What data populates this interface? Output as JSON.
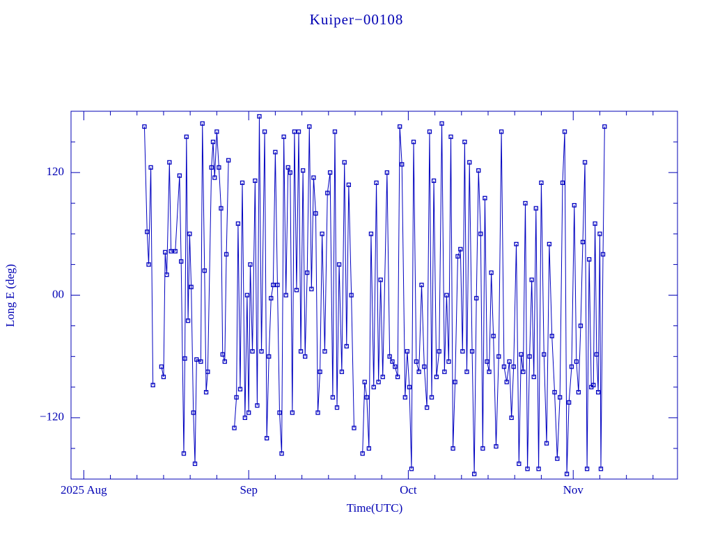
{
  "chart_data": {
    "type": "line",
    "title": "Kuiper−00108",
    "x_label": "Time(UTC)",
    "y_label": "Long E (deg)",
    "color": "#0000c0",
    "markers": true,
    "xlim": [
      -2.4,
      111.6
    ],
    "xticks": [
      {
        "value": 0,
        "label": "2025 Aug"
      },
      {
        "value": 31,
        "label": "Sep"
      },
      {
        "value": 61,
        "label": "Oct"
      },
      {
        "value": 92,
        "label": "Nov"
      }
    ],
    "xminorticks": [
      5,
      10,
      15,
      20,
      25,
      36,
      41,
      46,
      51,
      56,
      66,
      71,
      76,
      81,
      86,
      97,
      102,
      107
    ],
    "ylim": [
      -180,
      180
    ],
    "yticks": [
      {
        "value": -120,
        "label": "−120"
      },
      {
        "value": 0,
        "label": "00"
      },
      120
    ],
    "yminorticks": [
      -150,
      -90,
      -60,
      -30,
      30,
      60,
      90,
      150
    ],
    "x": [
      11.4,
      11.9,
      12.2,
      12.6,
      13.0,
      13.8,
      14.6,
      15.0,
      15.3,
      15.6,
      16.1,
      16.4,
      17.2,
      18.0,
      18.3,
      18.8,
      19.0,
      19.3,
      19.6,
      19.9,
      20.2,
      20.6,
      20.9,
      21.2,
      22.0,
      22.3,
      22.7,
      23.0,
      23.3,
      24.0,
      24.3,
      24.6,
      25.0,
      25.4,
      25.8,
      26.1,
      26.5,
      26.8,
      27.2,
      27.6,
      28.3,
      28.7,
      29.0,
      29.4,
      29.8,
      30.3,
      30.7,
      31.0,
      31.3,
      31.7,
      32.2,
      32.6,
      33.0,
      33.4,
      34.0,
      34.4,
      34.8,
      35.2,
      35.6,
      36.0,
      36.4,
      36.8,
      37.2,
      37.6,
      38.0,
      38.4,
      38.8,
      39.2,
      39.6,
      40.0,
      40.4,
      40.8,
      41.2,
      41.6,
      42.0,
      42.4,
      42.8,
      43.2,
      43.6,
      44.0,
      44.4,
      44.8,
      45.3,
      45.8,
      46.3,
      46.8,
      47.2,
      47.6,
      48.0,
      48.5,
      49.0,
      49.4,
      49.8,
      50.3,
      50.8,
      51.6,
      52.4,
      52.8,
      53.2,
      53.6,
      54.0,
      54.5,
      55.0,
      55.4,
      55.8,
      56.2,
      57.0,
      57.5,
      58.0,
      58.5,
      59.0,
      59.4,
      59.8,
      60.4,
      60.8,
      61.2,
      61.6,
      62.0,
      62.5,
      63.0,
      63.5,
      64.0,
      64.5,
      65.0,
      65.4,
      65.8,
      66.3,
      66.8,
      67.3,
      67.8,
      68.2,
      68.6,
      69.0,
      69.4,
      69.8,
      70.3,
      70.8,
      71.2,
      71.6,
      72.0,
      72.5,
      73.0,
      73.4,
      73.8,
      74.2,
      74.6,
      75.0,
      75.4,
      75.8,
      76.2,
      76.6,
      77.0,
      77.5,
      78.0,
      78.5,
      79.0,
      79.5,
      80.0,
      80.4,
      80.8,
      81.3,
      81.8,
      82.2,
      82.6,
      83.0,
      83.4,
      83.8,
      84.2,
      84.6,
      85.0,
      85.5,
      86.0,
      86.5,
      87.0,
      87.5,
      88.0,
      88.5,
      89.0,
      89.5,
      90.0,
      90.4,
      90.8,
      91.2,
      91.7,
      92.2,
      92.6,
      93.0,
      93.4,
      93.8,
      94.2,
      94.6,
      95.0,
      95.4,
      95.8,
      96.1,
      96.4,
      96.7,
      97.0,
      97.2,
      97.6,
      97.9
    ],
    "values": [
      165,
      62,
      30,
      125,
      -88,
      null,
      -70,
      -80,
      42,
      20,
      130,
      43,
      43,
      117,
      33,
      -155,
      -62,
      155,
      -25,
      60,
      8,
      -115,
      -165,
      -63,
      -65,
      168,
      24,
      -95,
      -75,
      125,
      150,
      115,
      160,
      125,
      85,
      -58,
      -65,
      40,
      132,
      null,
      -130,
      -100,
      70,
      -92,
      110,
      -120,
      0,
      -115,
      30,
      -55,
      112,
      -108,
      175,
      -55,
      160,
      -140,
      -60,
      -3,
      10,
      140,
      10,
      -115,
      -155,
      155,
      0,
      125,
      120,
      -115,
      160,
      5,
      160,
      -55,
      122,
      -60,
      22,
      165,
      6,
      115,
      80,
      -115,
      -75,
      60,
      -55,
      100,
      120,
      -100,
      160,
      -110,
      30,
      -75,
      130,
      -50,
      108,
      0,
      -130,
      null,
      -155,
      -85,
      -100,
      -150,
      60,
      -90,
      110,
      -85,
      15,
      -80,
      120,
      -60,
      -65,
      -70,
      -80,
      165,
      128,
      -100,
      -55,
      -90,
      -170,
      150,
      -65,
      -75,
      10,
      -70,
      -110,
      160,
      -100,
      112,
      -80,
      -55,
      168,
      -75,
      0,
      -65,
      155,
      -150,
      -85,
      38,
      45,
      -55,
      150,
      -75,
      130,
      -55,
      -175,
      -3,
      122,
      60,
      -150,
      95,
      -65,
      -75,
      22,
      -40,
      -148,
      -60,
      160,
      -70,
      -85,
      -65,
      -120,
      -70,
      50,
      -165,
      -58,
      -75,
      90,
      -170,
      -60,
      15,
      -80,
      85,
      -170,
      110,
      -58,
      -145,
      50,
      -40,
      -95,
      -160,
      -100,
      110,
      160,
      -175,
      -105,
      -70,
      88,
      -65,
      -95,
      -30,
      52,
      130,
      -170,
      35,
      -90,
      -88,
      70,
      -58,
      -95,
      60,
      -170,
      40,
      165
    ]
  }
}
